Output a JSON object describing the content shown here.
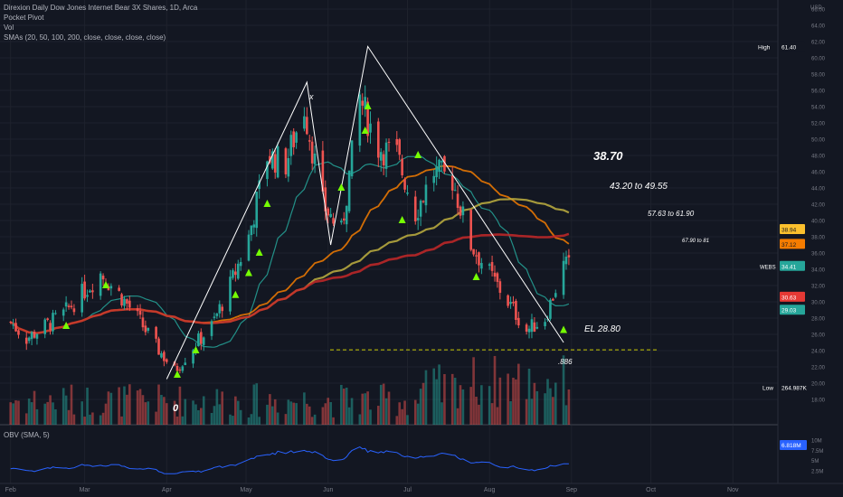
{
  "legend": {
    "title": "Direxion Daily Dow Jones Internet Bear 3X Shares, 1D, Arca",
    "line2": "Pocket Pivot",
    "line3": "Vol",
    "line4": "SMAs (20, 50, 100, 200, close, close, close, close)"
  },
  "obv_legend": "OBV (SMA, 5)",
  "currency": "USD",
  "colors": {
    "up": "#26a69a",
    "down": "#ef5350",
    "bg": "#131722",
    "grid": "#1e222d",
    "text": "#b2b5be",
    "annot": "#ffffff",
    "marker": "#76ff03",
    "obv": "#2962ff"
  },
  "annotations": {
    "x": "x",
    "o": "0",
    "fib": ".886",
    "t1": "38.70",
    "t2": "43.20 to 49.55",
    "t3": "57.63 to 61.90",
    "t4": "67.90 to 81",
    "el": "EL 28.80"
  },
  "badges": {
    "high": {
      "label": "High",
      "value": "61.40",
      "price": 61.4
    },
    "low": {
      "label": "Low",
      "value": "264.987K",
      "price": 19.5
    },
    "ma200": {
      "value": "38.94",
      "price": 38.94,
      "color": "#fbc02d"
    },
    "ma100": {
      "value": "37.12",
      "price": 37.12,
      "color": "#f57c00"
    },
    "last": {
      "sym": "WEBS",
      "value": "34.41",
      "price": 34.41
    },
    "ma50": {
      "value": "30.63",
      "price": 30.63,
      "color": "#e53935"
    },
    "ma20": {
      "value": "29.03",
      "price": 29.03,
      "color": "#26a69a"
    },
    "obv": {
      "value": "6.818M"
    }
  },
  "chart_data": {
    "type": "candlestick",
    "title": "Direxion Daily Dow Jones Internet Bear 3X Shares, 1D, Arca",
    "ylim": [
      16,
      66
    ],
    "y_ticks": [
      "66.00",
      "64.00",
      "62.00",
      "60.00",
      "58.00",
      "56.00",
      "54.00",
      "52.00",
      "50.00",
      "48.00",
      "46.00",
      "44.00",
      "42.00",
      "40.00",
      "38.00",
      "36.00",
      "34.00",
      "32.00",
      "30.00",
      "28.00",
      "26.00",
      "24.00",
      "22.00",
      "20.00",
      "18.00"
    ],
    "x_ticks": [
      "Feb",
      "Mar",
      "Apr",
      "May",
      "Jun",
      "Jul",
      "Aug",
      "Sep",
      "Oct",
      "Nov"
    ],
    "obv_ticks": [
      "10M",
      "7.5M",
      "5M",
      "2.5M"
    ],
    "key_points": [
      {
        "date": "2022-04-01",
        "price": 20.5,
        "label": "0"
      },
      {
        "date": "2022-05-24",
        "price": 57.0,
        "label": "x"
      },
      {
        "date": "2022-06-02",
        "price": 37.0
      },
      {
        "date": "2022-06-16",
        "price": 61.4
      },
      {
        "date": "2022-08-29",
        "price": 25.0
      }
    ],
    "close_path": [
      [
        "2022-02-01",
        27.5
      ],
      [
        "2022-02-07",
        25.5
      ],
      [
        "2022-02-14",
        27.0
      ],
      [
        "2022-02-21",
        28.5
      ],
      [
        "2022-02-28",
        31.0
      ],
      [
        "2022-03-07",
        33.5
      ],
      [
        "2022-03-14",
        31.0
      ],
      [
        "2022-03-21",
        28.0
      ],
      [
        "2022-03-28",
        24.5
      ],
      [
        "2022-04-04",
        21.5
      ],
      [
        "2022-04-11",
        24.5
      ],
      [
        "2022-04-18",
        27.0
      ],
      [
        "2022-04-25",
        32.0
      ],
      [
        "2022-05-02",
        38.0
      ],
      [
        "2022-05-09",
        48.0
      ],
      [
        "2022-05-16",
        47.0
      ],
      [
        "2022-05-23",
        54.0
      ],
      [
        "2022-05-30",
        42.0
      ],
      [
        "2022-06-06",
        38.5
      ],
      [
        "2022-06-13",
        55.0
      ],
      [
        "2022-06-20",
        49.0
      ],
      [
        "2022-06-27",
        48.0
      ],
      [
        "2022-07-04",
        41.0
      ],
      [
        "2022-07-11",
        46.0
      ],
      [
        "2022-07-18",
        45.0
      ],
      [
        "2022-07-25",
        37.0
      ],
      [
        "2022-08-01",
        33.5
      ],
      [
        "2022-08-08",
        30.0
      ],
      [
        "2022-08-15",
        26.5
      ],
      [
        "2022-08-22",
        28.0
      ],
      [
        "2022-08-29",
        34.41
      ]
    ]
  }
}
